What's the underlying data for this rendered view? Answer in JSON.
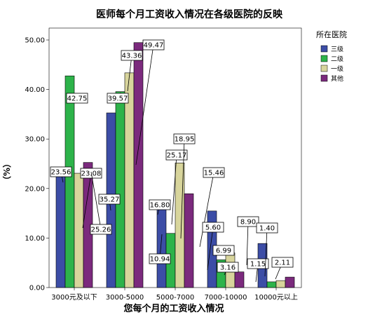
{
  "chart_data": {
    "type": "bar",
    "title": "医师每个月工资收入情况在各级医院的反映",
    "xlabel": "您每个月的工资收入情况",
    "ylabel": "（%）",
    "categories": [
      "3000元及以下",
      "3000-5000",
      "5000-7000",
      "7000-10000",
      "10000元以上"
    ],
    "ylim": [
      0,
      50
    ],
    "yticks": [
      "0.00",
      "10.00",
      "20.00",
      "30.00",
      "40.00",
      "50.00"
    ],
    "grid": false,
    "legend": {
      "title": "所在医院",
      "position": "top-right"
    },
    "series": [
      {
        "name": "三级",
        "color": "#3c4da6",
        "values": [
          23.56,
          35.27,
          16.8,
          15.46,
          8.9
        ],
        "labels": [
          "23.56",
          "35.27",
          "16.80",
          "15.46",
          "8.90"
        ]
      },
      {
        "name": "二级",
        "color": "#2db34a",
        "values": [
          42.75,
          39.57,
          10.94,
          5.6,
          1.15
        ],
        "labels": [
          "42.75",
          "39.57",
          "10.94",
          "5.60",
          "1.15"
        ]
      },
      {
        "name": "一级",
        "color": "#d8d59c",
        "values": [
          23.08,
          43.36,
          25.17,
          6.99,
          1.4
        ],
        "labels": [
          "23.08",
          "43.36",
          "25.17",
          "6.99",
          "1.40"
        ]
      },
      {
        "name": "其他",
        "color": "#7b2a7d",
        "values": [
          25.26,
          49.47,
          18.95,
          3.16,
          2.11
        ],
        "labels": [
          "25.26",
          "49.47",
          "18.95",
          "3.16",
          "2.11"
        ]
      }
    ]
  }
}
